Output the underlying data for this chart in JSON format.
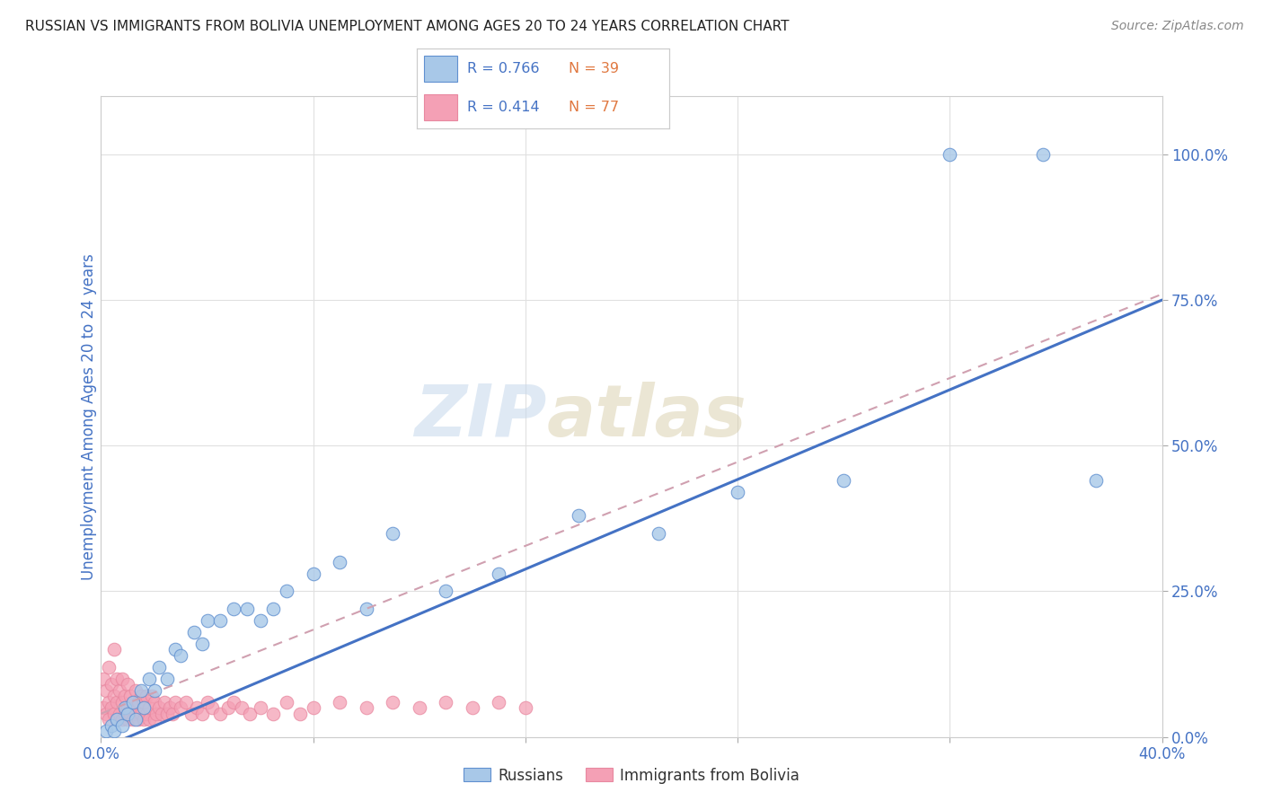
{
  "title": "RUSSIAN VS IMMIGRANTS FROM BOLIVIA UNEMPLOYMENT AMONG AGES 20 TO 24 YEARS CORRELATION CHART",
  "source": "Source: ZipAtlas.com",
  "ylabel": "Unemployment Among Ages 20 to 24 years",
  "xlim": [
    0.0,
    0.4
  ],
  "ylim": [
    0.0,
    1.1
  ],
  "yticks": [
    0.0,
    0.25,
    0.5,
    0.75,
    1.0
  ],
  "ytick_labels": [
    "0.0%",
    "25.0%",
    "50.0%",
    "75.0%",
    "100.0%"
  ],
  "xticks": [
    0.0,
    0.08,
    0.16,
    0.24,
    0.32,
    0.4
  ],
  "xtick_labels": [
    "0.0%",
    "",
    "",
    "",
    "",
    "40.0%"
  ],
  "background_color": "#ffffff",
  "grid_color": "#e0e0e0",
  "watermark_zip": "ZIP",
  "watermark_atlas": "atlas",
  "legend_r_russian": "R = 0.766",
  "legend_n_russian": "N = 39",
  "legend_r_bolivia": "R = 0.414",
  "legend_n_bolivia": "N = 77",
  "russian_color": "#a8c8e8",
  "bolivia_color": "#f4a0b5",
  "russian_line_color": "#4472c4",
  "bolivia_line_color": "#f4a0b5",
  "title_color": "#222222",
  "axis_color": "#4472c4",
  "tick_color": "#4472c4",
  "russians_x": [
    0.002,
    0.004,
    0.005,
    0.006,
    0.008,
    0.009,
    0.01,
    0.012,
    0.013,
    0.015,
    0.016,
    0.018,
    0.02,
    0.022,
    0.025,
    0.028,
    0.03,
    0.035,
    0.038,
    0.04,
    0.045,
    0.05,
    0.055,
    0.06,
    0.065,
    0.07,
    0.08,
    0.09,
    0.1,
    0.11,
    0.13,
    0.15,
    0.18,
    0.21,
    0.24,
    0.28,
    0.32,
    0.355,
    0.375
  ],
  "russians_y": [
    0.01,
    0.02,
    0.01,
    0.03,
    0.02,
    0.05,
    0.04,
    0.06,
    0.03,
    0.08,
    0.05,
    0.1,
    0.08,
    0.12,
    0.1,
    0.15,
    0.14,
    0.18,
    0.16,
    0.2,
    0.2,
    0.22,
    0.22,
    0.2,
    0.22,
    0.25,
    0.28,
    0.3,
    0.22,
    0.35,
    0.25,
    0.28,
    0.38,
    0.35,
    0.42,
    0.44,
    1.0,
    1.0,
    0.44
  ],
  "bolivia_x": [
    0.001,
    0.001,
    0.002,
    0.002,
    0.003,
    0.003,
    0.003,
    0.004,
    0.004,
    0.005,
    0.005,
    0.005,
    0.006,
    0.006,
    0.006,
    0.007,
    0.007,
    0.008,
    0.008,
    0.008,
    0.009,
    0.009,
    0.01,
    0.01,
    0.01,
    0.011,
    0.011,
    0.012,
    0.012,
    0.013,
    0.013,
    0.014,
    0.014,
    0.015,
    0.015,
    0.016,
    0.016,
    0.017,
    0.017,
    0.018,
    0.018,
    0.019,
    0.02,
    0.02,
    0.021,
    0.022,
    0.023,
    0.024,
    0.025,
    0.026,
    0.027,
    0.028,
    0.03,
    0.032,
    0.034,
    0.036,
    0.038,
    0.04,
    0.042,
    0.045,
    0.048,
    0.05,
    0.053,
    0.056,
    0.06,
    0.065,
    0.07,
    0.075,
    0.08,
    0.09,
    0.1,
    0.11,
    0.12,
    0.13,
    0.14,
    0.15,
    0.16
  ],
  "bolivia_y": [
    0.05,
    0.1,
    0.04,
    0.08,
    0.03,
    0.06,
    0.12,
    0.05,
    0.09,
    0.04,
    0.07,
    0.15,
    0.03,
    0.06,
    0.1,
    0.04,
    0.08,
    0.03,
    0.06,
    0.1,
    0.04,
    0.07,
    0.03,
    0.05,
    0.09,
    0.04,
    0.07,
    0.03,
    0.06,
    0.04,
    0.08,
    0.03,
    0.06,
    0.04,
    0.07,
    0.03,
    0.06,
    0.04,
    0.07,
    0.03,
    0.05,
    0.07,
    0.03,
    0.06,
    0.04,
    0.05,
    0.04,
    0.06,
    0.04,
    0.05,
    0.04,
    0.06,
    0.05,
    0.06,
    0.04,
    0.05,
    0.04,
    0.06,
    0.05,
    0.04,
    0.05,
    0.06,
    0.05,
    0.04,
    0.05,
    0.04,
    0.06,
    0.04,
    0.05,
    0.06,
    0.05,
    0.06,
    0.05,
    0.06,
    0.05,
    0.06,
    0.05
  ],
  "russia_trend_x0": 0.0,
  "russia_trend_y0": -0.02,
  "russia_trend_x1": 0.4,
  "russia_trend_y1": 0.75,
  "bolivia_trend_x0": 0.0,
  "bolivia_trend_y0": 0.04,
  "bolivia_trend_x1": 0.4,
  "bolivia_trend_y1": 0.76
}
